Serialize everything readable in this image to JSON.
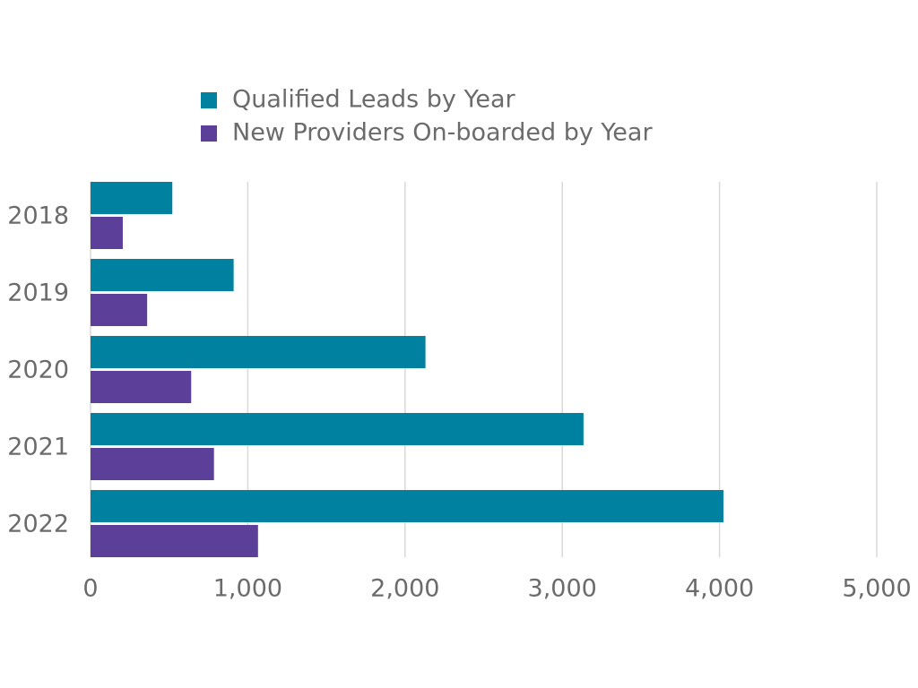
{
  "chart_data": {
    "type": "bar",
    "orientation": "horizontal",
    "categories": [
      "2018",
      "2019",
      "2020",
      "2021",
      "2022"
    ],
    "series": [
      {
        "name": "Qualified Leads by Year",
        "color": "#00819f",
        "values": [
          520,
          910,
          2130,
          3135,
          4025
        ]
      },
      {
        "name": "New Providers On-boarded by Year",
        "color": "#5b3f99",
        "values": [
          205,
          360,
          640,
          785,
          1065
        ]
      }
    ],
    "xlim": [
      0,
      5000
    ],
    "xticks": [
      0,
      {
        "value": 1000,
        "label": "1,000"
      },
      {
        "value": 2000,
        "label": "2,000"
      },
      {
        "value": 3000,
        "label": "3,000"
      },
      {
        "value": 4000,
        "label": "4,000"
      },
      {
        "value": 5000,
        "label": "5,000"
      }
    ],
    "grid": true,
    "legend": "top"
  }
}
